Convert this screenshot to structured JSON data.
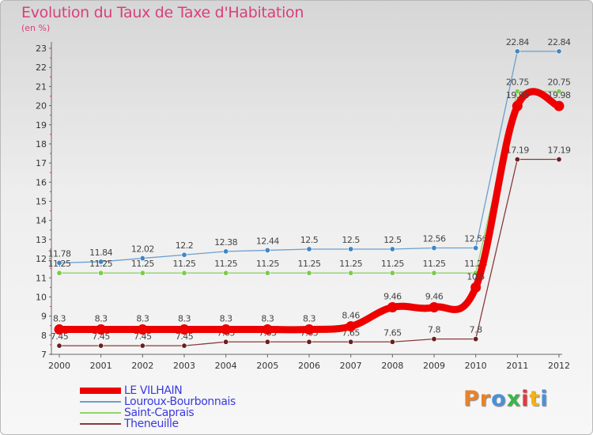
{
  "chart_data": {
    "type": "line",
    "title": "Evolution du Taux de Taxe d'Habitation",
    "subtitle": "(en %)",
    "xlabel": "",
    "ylabel": "",
    "x": [
      "2000",
      "2001",
      "2002",
      "2003",
      "2004",
      "2005",
      "2006",
      "2007",
      "2008",
      "2009",
      "2010",
      "2011",
      "2012"
    ],
    "ylim": [
      7,
      23
    ],
    "yticks": [
      "7",
      "8",
      "9",
      "10",
      "11",
      "12",
      "13",
      "14",
      "15",
      "16",
      "17",
      "18",
      "19",
      "20",
      "21",
      "22",
      "23"
    ],
    "grid": false,
    "legend_position": "bottom-left",
    "series": [
      {
        "name": "Louroux-Bourbonnais",
        "color": "#6a9fd0",
        "marker_color": "#3f86c4",
        "values": [
          11.78,
          11.84,
          12.02,
          12.2,
          12.38,
          12.44,
          12.5,
          12.5,
          12.5,
          12.56,
          12.56,
          22.84,
          22.84
        ],
        "labels": [
          "11.78",
          "11.84",
          "12.02",
          "12.2",
          "12.38",
          "12.44",
          "12.5",
          "12.5",
          "12.5",
          "12.56",
          "12.56",
          "22.84",
          "22.84"
        ]
      },
      {
        "name": "Saint-Caprais",
        "color": "#8ed46a",
        "marker_color": "#7ccc4c",
        "values": [
          11.25,
          11.25,
          11.25,
          11.25,
          11.25,
          11.25,
          11.25,
          11.25,
          11.25,
          11.25,
          11.25,
          20.75,
          20.75
        ],
        "labels": [
          "11.25",
          "11.25",
          "11.25",
          "11.25",
          "11.25",
          "11.25",
          "11.25",
          "11.25",
          "11.25",
          "11.25",
          "11.25",
          "20.75",
          "20.75"
        ]
      },
      {
        "name": "Theneuille",
        "color": "#8a3a3a",
        "marker_color": "#6b1f1f",
        "values": [
          7.45,
          7.45,
          7.45,
          7.45,
          7.65,
          7.65,
          7.65,
          7.65,
          7.65,
          7.8,
          7.8,
          17.19,
          17.19
        ],
        "labels": [
          "7.45",
          "7.45",
          "7.45",
          "7.45",
          "7.65",
          "7.65",
          "7.65",
          "7.65",
          "7.65",
          "7.8",
          "7.8",
          "17.19",
          "17.19"
        ]
      },
      {
        "name": "LE VILHAIN",
        "color": "#ee0000",
        "marker_color": "#ee0000",
        "values": [
          8.3,
          8.3,
          8.3,
          8.3,
          8.3,
          8.3,
          8.3,
          8.46,
          9.46,
          9.46,
          10.5,
          19.98,
          19.98
        ],
        "labels": [
          "8.3",
          "8.3",
          "8.3",
          "8.3",
          "8.3",
          "8.3",
          "8.3",
          "8.46",
          "9.46",
          "9.46",
          "10.5",
          "19.98",
          "19.98"
        ]
      }
    ],
    "legend_order": [
      "LE VILHAIN",
      "Louroux-Bourbonnais",
      "Saint-Caprais",
      "Theneuille"
    ]
  },
  "branding": {
    "logo_text": "Proxiti",
    "logo_colors": [
      "#e8822a",
      "#e8822a",
      "#4a90d9",
      "#3bb54a",
      "#e03a3a",
      "#f2b21b",
      "#4a90d9"
    ]
  }
}
